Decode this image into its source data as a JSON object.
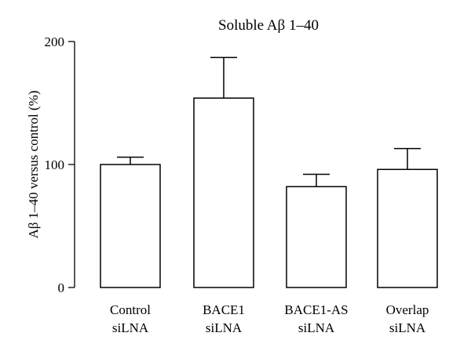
{
  "chart_data": {
    "type": "bar",
    "title": "Soluble Aβ 1–40",
    "ylabel": "Aβ 1–40 versus control (%)",
    "xlabel": "",
    "categories": [
      [
        "Control",
        "siLNA"
      ],
      [
        "BACE1",
        "siLNA"
      ],
      [
        "BACE1-AS",
        "siLNA"
      ],
      [
        "Overlap",
        "siLNA"
      ]
    ],
    "values": [
      100,
      154,
      82,
      96
    ],
    "error_upper": [
      6,
      33,
      10,
      17
    ],
    "ylim": [
      0,
      200
    ],
    "yticks": [
      0,
      100,
      200
    ],
    "grid": false,
    "colors": {
      "bar_fill": "#ffffff",
      "stroke": "#000000"
    }
  }
}
